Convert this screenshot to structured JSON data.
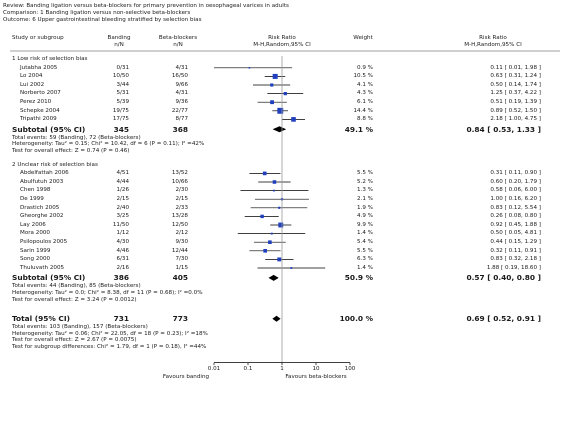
{
  "header": {
    "review": "Review:  Banding ligation versus beta-blockers for primary prevention in oesophageal varices in adults",
    "comparison": "Comparison:  1 Banding ligation versus non-selective beta-blockers",
    "outcome": "Outcome:  6 Upper gastrointestinal bleeding stratified by selection bias"
  },
  "columns": {
    "study": "Study or subgroup",
    "g1": "Banding",
    "g1_sub": "n/N",
    "g2": "Beta-blockers",
    "g2_sub": "n/N",
    "rr": "Risk Ratio",
    "rr_sub": "M-H,Random,95% CI",
    "weight": "Weight",
    "rr2": "Risk Ratio",
    "rr2_sub": "M-H,Random,95% CI"
  },
  "axis": {
    "ticks": [
      "0.01",
      "0.1",
      "1",
      "10",
      "100"
    ],
    "left_label": "Favours banding",
    "right_label": "Favours beta-blockers"
  },
  "chart_data": {
    "type": "forest",
    "scale": "log",
    "xlim": [
      0.01,
      100
    ],
    "reference_line": 1,
    "groups": [
      {
        "title": "1 Low risk of selection bias",
        "studies": [
          {
            "name": "Jutabha 2005",
            "g1": "0/31",
            "g2": "4/31",
            "weight": "0.9 %",
            "rr_text": "0.11 [ 0.01, 1.98 ]",
            "rr": 0.11,
            "lo": 0.01,
            "hi": 1.98
          },
          {
            "name": "Lo 2004",
            "g1": "10/50",
            "g2": "16/50",
            "weight": "10.5 %",
            "rr_text": "0.63 [ 0.31, 1.24 ]",
            "rr": 0.63,
            "lo": 0.31,
            "hi": 1.24
          },
          {
            "name": "Lui 2002",
            "g1": "3/44",
            "g2": "9/66",
            "weight": "4.1 %",
            "rr_text": "0.50 [ 0.14, 1.74 ]",
            "rr": 0.5,
            "lo": 0.14,
            "hi": 1.74
          },
          {
            "name": "Norberto 2007",
            "g1": "5/31",
            "g2": "4/31",
            "weight": "4.3 %",
            "rr_text": "1.25 [ 0.37, 4.22 ]",
            "rr": 1.25,
            "lo": 0.37,
            "hi": 4.22
          },
          {
            "name": "Perez 2010",
            "g1": "5/39",
            "g2": "9/36",
            "weight": "6.1 %",
            "rr_text": "0.51 [ 0.19, 1.39 ]",
            "rr": 0.51,
            "lo": 0.19,
            "hi": 1.39
          },
          {
            "name": "Schepke 2004",
            "g1": "19/75",
            "g2": "22/77",
            "weight": "14.4 %",
            "rr_text": "0.89 [ 0.52, 1.50 ]",
            "rr": 0.89,
            "lo": 0.52,
            "hi": 1.5
          },
          {
            "name": "Tripathi 2009",
            "g1": "17/75",
            "g2": "8/77",
            "weight": "8.8 %",
            "rr_text": "2.18 [ 1.00, 4.75 ]",
            "rr": 2.18,
            "lo": 1.0,
            "hi": 4.75
          }
        ],
        "subtotal": {
          "label": "Subtotal (95% CI)",
          "g1": "345",
          "g2": "368",
          "weight": "49.1 %",
          "rr_text": "0.84 [ 0.53, 1.33 ]",
          "rr": 0.84,
          "lo": 0.53,
          "hi": 1.33
        },
        "notes": [
          "Total events: 59 (Banding), 72 (Beta-blockers)",
          "Heterogeneity: Tau² = 0.15; Chi² = 10.42, df = 6 (P = 0.11); I² =42%",
          "Test for overall effect: Z = 0.74 (P = 0.46)"
        ]
      },
      {
        "title": "2 Unclear risk of selection bias",
        "studies": [
          {
            "name": "Abdelfattah 2006",
            "g1": "4/51",
            "g2": "13/52",
            "weight": "5.5 %",
            "rr_text": "0.31 [ 0.11, 0.90 ]",
            "rr": 0.31,
            "lo": 0.11,
            "hi": 0.9
          },
          {
            "name": "Abulfutuh 2003",
            "g1": "4/44",
            "g2": "10/66",
            "weight": "5.2 %",
            "rr_text": "0.60 [ 0.20, 1.79 ]",
            "rr": 0.6,
            "lo": 0.2,
            "hi": 1.79
          },
          {
            "name": "Chen 1998",
            "g1": "1/26",
            "g2": "2/30",
            "weight": "1.3 %",
            "rr_text": "0.58 [ 0.06, 6.00 ]",
            "rr": 0.58,
            "lo": 0.06,
            "hi": 6.0
          },
          {
            "name": "De 1999",
            "g1": "2/15",
            "g2": "2/15",
            "weight": "2.1 %",
            "rr_text": "1.00 [ 0.16, 6.20 ]",
            "rr": 1.0,
            "lo": 0.16,
            "hi": 6.2
          },
          {
            "name": "Drastich 2005",
            "g1": "2/40",
            "g2": "2/33",
            "weight": "1.9 %",
            "rr_text": "0.83 [ 0.12, 5.54 ]",
            "rr": 0.83,
            "lo": 0.12,
            "hi": 5.54
          },
          {
            "name": "Gheorghe 2002",
            "g1": "3/25",
            "g2": "13/28",
            "weight": "4.9 %",
            "rr_text": "0.26 [ 0.08, 0.80 ]",
            "rr": 0.26,
            "lo": 0.08,
            "hi": 0.8
          },
          {
            "name": "Lay 2006",
            "g1": "11/50",
            "g2": "12/50",
            "weight": "9.9 %",
            "rr_text": "0.92 [ 0.45, 1.88 ]",
            "rr": 0.92,
            "lo": 0.45,
            "hi": 1.88
          },
          {
            "name": "Mora 2000",
            "g1": "1/12",
            "g2": "2/12",
            "weight": "1.4 %",
            "rr_text": "0.50 [ 0.05, 4.81 ]",
            "rr": 0.5,
            "lo": 0.05,
            "hi": 4.81
          },
          {
            "name": "Psilopoulos 2005",
            "g1": "4/30",
            "g2": "9/30",
            "weight": "5.4 %",
            "rr_text": "0.44 [ 0.15, 1.29 ]",
            "rr": 0.44,
            "lo": 0.15,
            "hi": 1.29
          },
          {
            "name": "Sarin 1999",
            "g1": "4/46",
            "g2": "12/44",
            "weight": "5.5 %",
            "rr_text": "0.32 [ 0.11, 0.91 ]",
            "rr": 0.32,
            "lo": 0.11,
            "hi": 0.91
          },
          {
            "name": "Song 2000",
            "g1": "6/31",
            "g2": "7/30",
            "weight": "6.3 %",
            "rr_text": "0.83 [ 0.32, 2.18 ]",
            "rr": 0.83,
            "lo": 0.32,
            "hi": 2.18
          },
          {
            "name": "Thuluvath 2005",
            "g1": "2/16",
            "g2": "1/15",
            "weight": "1.4 %",
            "rr_text": "1.88 [ 0.19, 18.60 ]",
            "rr": 1.88,
            "lo": 0.19,
            "hi": 18.6
          }
        ],
        "subtotal": {
          "label": "Subtotal (95% CI)",
          "g1": "386",
          "g2": "405",
          "weight": "50.9 %",
          "rr_text": "0.57 [ 0.40, 0.80 ]",
          "rr": 0.57,
          "lo": 0.4,
          "hi": 0.8
        },
        "notes": [
          "Total events: 44 (Banding), 85 (Beta-blockers)",
          "Heterogeneity: Tau² = 0.0; Chi² = 8.38, df = 11 (P = 0.68); I² =0.0%",
          "Test for overall effect: Z = 3.24 (P = 0.0012)"
        ]
      }
    ],
    "total": {
      "label": "Total (95% CI)",
      "g1": "731",
      "g2": "773",
      "weight": "100.0 %",
      "rr_text": "0.69 [ 0.52, 0.91 ]",
      "rr": 0.69,
      "lo": 0.52,
      "hi": 0.91
    },
    "total_notes": [
      "Total events: 103 (Banding), 157 (Beta-blockers)",
      "Heterogeneity: Tau² = 0.06; Chi² = 22.05, df = 18 (P = 0.23); I² =18%",
      "Test for overall effect: Z = 2.67 (P = 0.0075)",
      "Test for subgroup differences: Chi² = 1.79, df = 1 (P = 0.18), I² =44%"
    ],
    "colors": {
      "square": "#1f3fbf",
      "diamond": "#000000",
      "line": "#000000",
      "ref_line": "#9a9a9a"
    }
  }
}
